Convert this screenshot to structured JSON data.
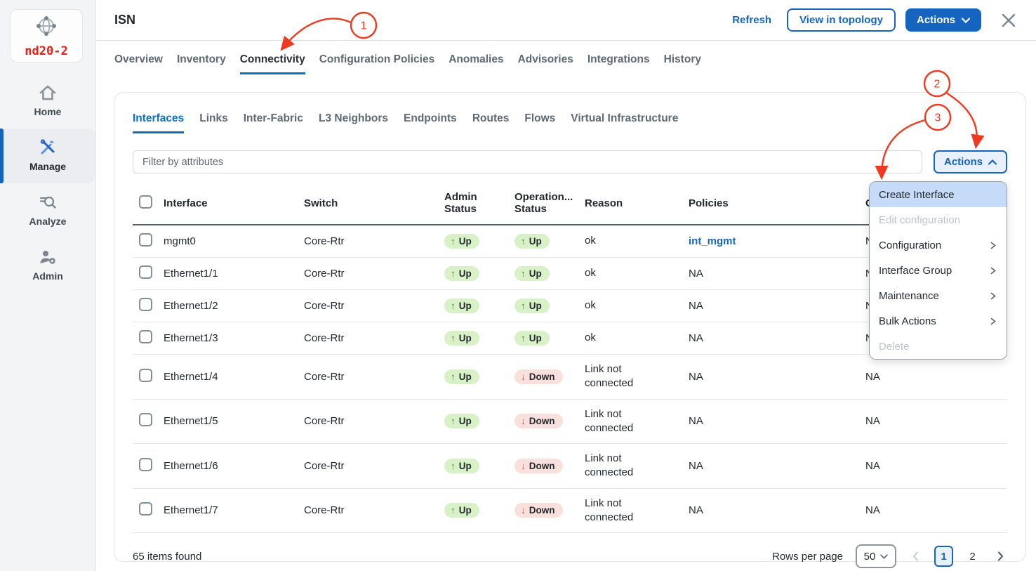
{
  "sidebar": {
    "cluster_name": "nd20-2",
    "items": [
      {
        "label": "Home",
        "icon": "home",
        "active": false
      },
      {
        "label": "Manage",
        "icon": "tools",
        "active": true
      },
      {
        "label": "Analyze",
        "icon": "search-lines",
        "active": false
      },
      {
        "label": "Admin",
        "icon": "user-gear",
        "active": false
      }
    ]
  },
  "header": {
    "title": "ISN",
    "refresh_label": "Refresh",
    "view_in_topology_label": "View in topology",
    "actions_label": "Actions"
  },
  "tabs": [
    {
      "label": "Overview",
      "active": false
    },
    {
      "label": "Inventory",
      "active": false
    },
    {
      "label": "Connectivity",
      "active": true
    },
    {
      "label": "Configuration Policies",
      "active": false
    },
    {
      "label": "Anomalies",
      "active": false
    },
    {
      "label": "Advisories",
      "active": false
    },
    {
      "label": "Integrations",
      "active": false
    },
    {
      "label": "History",
      "active": false
    }
  ],
  "subtabs": [
    {
      "label": "Interfaces",
      "active": true
    },
    {
      "label": "Links",
      "active": false
    },
    {
      "label": "Inter-Fabric",
      "active": false
    },
    {
      "label": "L3 Neighbors",
      "active": false
    },
    {
      "label": "Endpoints",
      "active": false
    },
    {
      "label": "Routes",
      "active": false
    },
    {
      "label": "Flows",
      "active": false
    },
    {
      "label": "Virtual Infrastructure",
      "active": false
    }
  ],
  "toolbar": {
    "filter_placeholder": "Filter by attributes",
    "actions_label": "Actions"
  },
  "actions_menu": {
    "items": [
      {
        "label": "Create Interface",
        "state": "highlighted",
        "submenu": false
      },
      {
        "label": "Edit configuration",
        "state": "disabled",
        "submenu": false
      },
      {
        "label": "Configuration",
        "state": "normal",
        "submenu": true
      },
      {
        "label": "Interface Group",
        "state": "normal",
        "submenu": true
      },
      {
        "label": "Maintenance",
        "state": "normal",
        "submenu": true
      },
      {
        "label": "Bulk Actions",
        "state": "normal",
        "submenu": true
      },
      {
        "label": "Delete",
        "state": "disabled",
        "submenu": false
      }
    ]
  },
  "table": {
    "columns": [
      "Interface",
      "Switch",
      "Admin Status",
      "Operation... Status",
      "Reason",
      "Policies",
      "C"
    ],
    "rows": [
      {
        "interface": "mgmt0",
        "switch": "Core-Rtr",
        "admin_status": "Up",
        "oper_status": "Up",
        "reason": "ok",
        "policies": "int_mgmt",
        "policies_is_link": true,
        "extra": "NA"
      },
      {
        "interface": "Ethernet1/1",
        "switch": "Core-Rtr",
        "admin_status": "Up",
        "oper_status": "Up",
        "reason": "ok",
        "policies": "NA",
        "policies_is_link": false,
        "extra": "NA"
      },
      {
        "interface": "Ethernet1/2",
        "switch": "Core-Rtr",
        "admin_status": "Up",
        "oper_status": "Up",
        "reason": "ok",
        "policies": "NA",
        "policies_is_link": false,
        "extra": "NA"
      },
      {
        "interface": "Ethernet1/3",
        "switch": "Core-Rtr",
        "admin_status": "Up",
        "oper_status": "Up",
        "reason": "ok",
        "policies": "NA",
        "policies_is_link": false,
        "extra": "NA"
      },
      {
        "interface": "Ethernet1/4",
        "switch": "Core-Rtr",
        "admin_status": "Up",
        "oper_status": "Down",
        "reason": "Link not connected",
        "policies": "NA",
        "policies_is_link": false,
        "extra": "NA"
      },
      {
        "interface": "Ethernet1/5",
        "switch": "Core-Rtr",
        "admin_status": "Up",
        "oper_status": "Down",
        "reason": "Link not connected",
        "policies": "NA",
        "policies_is_link": false,
        "extra": "NA"
      },
      {
        "interface": "Ethernet1/6",
        "switch": "Core-Rtr",
        "admin_status": "Up",
        "oper_status": "Down",
        "reason": "Link not connected",
        "policies": "NA",
        "policies_is_link": false,
        "extra": "NA"
      },
      {
        "interface": "Ethernet1/7",
        "switch": "Core-Rtr",
        "admin_status": "Up",
        "oper_status": "Down",
        "reason": "Link not connected",
        "policies": "NA",
        "policies_is_link": false,
        "extra": "NA"
      }
    ]
  },
  "footer": {
    "items_found": "65 items found",
    "rows_per_page_label": "Rows per page",
    "rows_per_page_value": "50",
    "pages": [
      "1",
      "2"
    ],
    "current_page": "1"
  },
  "annotations": {
    "callouts": [
      "1",
      "2",
      "3"
    ],
    "color": "#ee3a21"
  },
  "colors": {
    "accent_blue": "#1564bf",
    "tab_underline": "#0d6fc2",
    "status_up_bg": "#d9f1c6",
    "status_up_arrow": "#3f8f26",
    "status_down_bg": "#fae0dc",
    "status_down_arrow": "#d6452c",
    "menu_highlight": "#c5dbf7",
    "brand_red": "#e2231a",
    "annotation_red": "#ee3a21"
  }
}
